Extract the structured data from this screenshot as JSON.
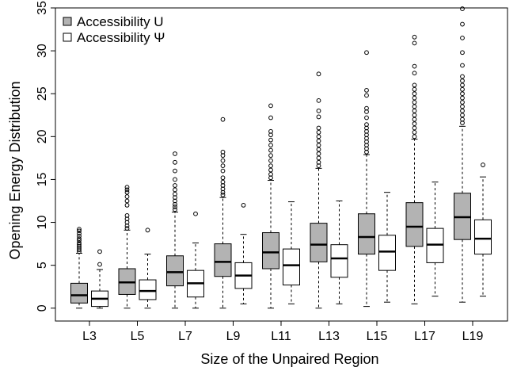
{
  "chart_data": {
    "type": "box",
    "title": "",
    "xlabel": "Size of the Unpaired Region",
    "ylabel": "Opening Energy Distribution",
    "ylim": [
      -1.5,
      35
    ],
    "yticks": [
      0,
      5,
      10,
      15,
      20,
      25,
      30,
      35
    ],
    "categories": [
      "L3",
      "L5",
      "L7",
      "L9",
      "L11",
      "L13",
      "L15",
      "L17",
      "L19"
    ],
    "legend_position": "top-left",
    "grid": false,
    "series": [
      {
        "name": "Accessibility U",
        "color": "#b3b3b3",
        "boxes": [
          {
            "min": 0.0,
            "q1": 0.6,
            "median": 1.5,
            "q3": 2.9,
            "max": 6.4,
            "outliers": [
              6.6,
              6.8,
              7.0,
              7.2,
              7.4,
              7.6,
              7.9,
              8.1,
              8.4,
              8.7,
              9.0,
              9.2
            ]
          },
          {
            "min": 0.0,
            "q1": 1.6,
            "median": 3.0,
            "q3": 4.6,
            "max": 9.1,
            "outliers": [
              9.3,
              9.6,
              10.0,
              10.4,
              10.8,
              12.0,
              12.5,
              13.0,
              13.5,
              13.8,
              14.1
            ]
          },
          {
            "min": 0.0,
            "q1": 2.6,
            "median": 4.2,
            "q3": 6.1,
            "max": 11.2,
            "outliers": [
              11.5,
              11.8,
              12.1,
              12.5,
              12.9,
              13.3,
              13.8,
              14.3,
              15.0,
              16.0,
              17.0,
              18.0
            ]
          },
          {
            "min": 0.0,
            "q1": 3.7,
            "median": 5.4,
            "q3": 7.5,
            "max": 12.9,
            "outliers": [
              13.2,
              13.5,
              13.9,
              14.3,
              14.7,
              15.2,
              16.0,
              16.6,
              17.2,
              17.8,
              18.2,
              22.0
            ]
          },
          {
            "min": 0.0,
            "q1": 4.6,
            "median": 6.5,
            "q3": 8.8,
            "max": 14.9,
            "outliers": [
              15.2,
              15.6,
              16.1,
              16.6,
              17.2,
              17.8,
              18.4,
              19.0,
              19.6,
              20.2,
              20.6,
              22.2,
              23.6
            ]
          },
          {
            "min": 0.0,
            "q1": 5.4,
            "median": 7.4,
            "q3": 9.9,
            "max": 16.3,
            "outliers": [
              16.6,
              17.0,
              17.5,
              18.0,
              18.5,
              19.0,
              19.5,
              20.0,
              20.5,
              21.0,
              22.3,
              23.0,
              24.2,
              27.3
            ]
          },
          {
            "min": 0.2,
            "q1": 6.3,
            "median": 8.3,
            "q3": 11.0,
            "max": 17.9,
            "outliers": [
              18.2,
              18.6,
              19.0,
              19.4,
              19.8,
              20.2,
              20.6,
              21.0,
              21.4,
              22.2,
              22.9,
              23.3,
              24.8,
              25.4,
              29.8
            ]
          },
          {
            "min": 0.5,
            "q1": 7.2,
            "median": 9.5,
            "q3": 12.3,
            "max": 19.7,
            "outliers": [
              20.0,
              20.5,
              21.0,
              21.5,
              22.0,
              22.5,
              23.0,
              23.5,
              24.0,
              24.5,
              25.0,
              25.5,
              26.0,
              27.4,
              28.2,
              30.9,
              31.6
            ]
          },
          {
            "min": 0.7,
            "q1": 8.0,
            "median": 10.6,
            "q3": 13.4,
            "max": 21.2,
            "outliers": [
              21.6,
              22.0,
              22.5,
              23.0,
              23.5,
              24.0,
              24.5,
              25.0,
              25.5,
              26.0,
              26.5,
              27.0,
              28.3,
              29.8,
              31.5,
              33.1,
              34.9
            ]
          }
        ]
      },
      {
        "name": "Accessibility Ψ",
        "color": "#ffffff",
        "boxes": [
          {
            "min": 0.0,
            "q1": 0.2,
            "median": 1.1,
            "q3": 2.0,
            "max": 4.5,
            "outliers": [
              5.1,
              6.6
            ]
          },
          {
            "min": 0.0,
            "q1": 1.0,
            "median": 2.0,
            "q3": 3.3,
            "max": 6.3,
            "outliers": [
              9.1
            ]
          },
          {
            "min": 0.0,
            "q1": 1.3,
            "median": 2.9,
            "q3": 4.4,
            "max": 7.6,
            "outliers": [
              11.0
            ]
          },
          {
            "min": 0.5,
            "q1": 2.3,
            "median": 3.8,
            "q3": 5.3,
            "max": 8.6,
            "outliers": [
              12.0
            ]
          },
          {
            "min": 0.5,
            "q1": 2.7,
            "median": 5.0,
            "q3": 6.9,
            "max": 12.4,
            "outliers": []
          },
          {
            "min": 0.5,
            "q1": 3.6,
            "median": 5.8,
            "q3": 7.4,
            "max": 12.5,
            "outliers": []
          },
          {
            "min": 0.7,
            "q1": 4.4,
            "median": 6.6,
            "q3": 8.5,
            "max": 13.5,
            "outliers": []
          },
          {
            "min": 1.4,
            "q1": 5.3,
            "median": 7.4,
            "q3": 9.3,
            "max": 14.7,
            "outliers": []
          },
          {
            "min": 1.4,
            "q1": 6.3,
            "median": 8.1,
            "q3": 10.3,
            "max": 15.3,
            "outliers": [
              16.7
            ]
          }
        ]
      }
    ]
  }
}
